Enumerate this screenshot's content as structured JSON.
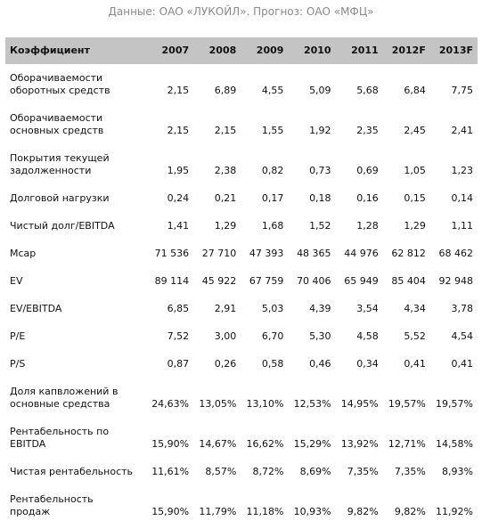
{
  "source": "Данные: ОАО «ЛУКОЙЛ». Прогноз: ОАО «МФЦ»",
  "table": {
    "header": [
      "Коэффициент",
      "2007",
      "2008",
      "2009",
      "2010",
      "2011",
      "2012F",
      "2013F"
    ],
    "rows": [
      [
        "Оборачиваемости оборотных средств",
        "2,15",
        "6,89",
        "4,55",
        "5,09",
        "5,68",
        "6,84",
        "7,75"
      ],
      [
        "Оборачиваемости основных средств",
        "2,15",
        "2,15",
        "1,55",
        "1,92",
        "2,35",
        "2,45",
        "2,41"
      ],
      [
        "Покрытия текущей задолженности",
        "1,95",
        "2,38",
        "0,82",
        "0,73",
        "0,69",
        "1,05",
        "1,23"
      ],
      [
        "Долговой нагрузки",
        "0,24",
        "0,21",
        "0,17",
        "0,18",
        "0,16",
        "0,15",
        "0,14"
      ],
      [
        "Чистый долг/EBITDA",
        "1,41",
        "1,29",
        "1,68",
        "1,52",
        "1,28",
        "1,29",
        "1,11"
      ],
      [
        "Mcap",
        "71 536",
        "27 710",
        "47 393",
        "48 365",
        "44 976",
        "62 812",
        "68 462"
      ],
      [
        "EV",
        "89 114",
        "45 922",
        "67 759",
        "70 406",
        "65 949",
        "85 404",
        "92 948"
      ],
      [
        "EV/EBITDA",
        "6,85",
        "2,91",
        "5,03",
        "4,39",
        "3,54",
        "4,34",
        "3,78"
      ],
      [
        "P/E",
        "7,52",
        "3,00",
        "6,70",
        "5,30",
        "4,58",
        "5,52",
        "4,54"
      ],
      [
        "P/S",
        "0,87",
        "0,26",
        "0,58",
        "0,46",
        "0,34",
        "0,41",
        "0,41"
      ],
      [
        "Доля капвложений в основные средства",
        "24,63%",
        "13,05%",
        "13,10%",
        "12,53%",
        "14,95%",
        "19,57%",
        "19,57%"
      ],
      [
        "Рентабельность по EBITDA",
        "15,90%",
        "14,67%",
        "16,62%",
        "15,29%",
        "13,92%",
        "12,71%",
        "14,58%"
      ],
      [
        "Чистая рентабельность",
        "11,61%",
        "8,57%",
        "8,72%",
        "8,69%",
        "7,35%",
        "7,35%",
        "8,93%"
      ],
      [
        "Рентабельность продаж",
        "15,90%",
        "11,79%",
        "11,18%",
        "10,93%",
        "9,82%",
        "9,82%",
        "11,92%"
      ]
    ]
  }
}
